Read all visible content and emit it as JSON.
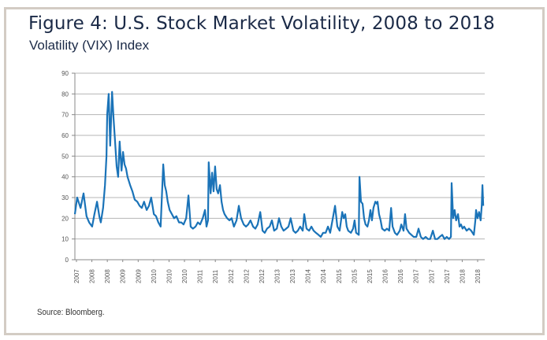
{
  "chart_data": {
    "type": "line",
    "title": "Figure 4:  U.S. Stock Market Volatility, 2008 to 2018",
    "subtitle": "Volatility (VIX) Index",
    "xlabel": "",
    "ylabel": "",
    "ylim": [
      0,
      90
    ],
    "xlim": [
      2008.04,
      2018.94
    ],
    "yticks": [
      "0",
      "10",
      "20",
      "30",
      "40",
      "50",
      "60",
      "70",
      "80",
      "90"
    ],
    "xtick_labels": [
      "2007",
      "2008",
      "2008",
      "2009",
      "2009",
      "2010",
      "2010",
      "2010",
      "2011",
      "2011",
      "2012",
      "2012",
      "2012",
      "2013",
      "2013",
      "2014",
      "2014",
      "2015",
      "2015",
      "2015",
      "2016",
      "2016",
      "2017",
      "2017",
      "2017",
      "2018",
      "2018"
    ],
    "grid": true,
    "legend": "none",
    "color": "#1a73b8",
    "series": [
      {
        "x": [
          2008.04,
          2008.1,
          2008.19,
          2008.27,
          2008.35,
          2008.42,
          2008.5,
          2008.56,
          2008.63,
          2008.69,
          2008.73,
          2008.79,
          2008.84,
          2008.88,
          2008.9,
          2008.94,
          2008.98,
          2009.03,
          2009.07,
          2009.11,
          2009.15,
          2009.19,
          2009.23,
          2009.28,
          2009.32,
          2009.36,
          2009.4,
          2009.44,
          2009.51,
          2009.57,
          2009.63,
          2009.7,
          2009.76,
          2009.82,
          2009.88,
          2009.95,
          2010.01,
          2010.07,
          2010.14,
          2010.2,
          2010.26,
          2010.32,
          2010.39,
          2010.43,
          2010.47,
          2010.51,
          2010.56,
          2010.62,
          2010.68,
          2010.74,
          2010.81,
          2010.87,
          2010.93,
          2011.0,
          2011.06,
          2011.12,
          2011.18,
          2011.25,
          2011.31,
          2011.37,
          2011.44,
          2011.5,
          2011.54,
          2011.58,
          2011.6,
          2011.65,
          2011.69,
          2011.73,
          2011.77,
          2011.81,
          2011.85,
          2011.9,
          2011.94,
          2011.98,
          2012.02,
          2012.09,
          2012.15,
          2012.21,
          2012.27,
          2012.34,
          2012.4,
          2012.46,
          2012.53,
          2012.59,
          2012.65,
          2012.71,
          2012.78,
          2012.84,
          2012.9,
          2012.97,
          2013.03,
          2013.09,
          2013.15,
          2013.22,
          2013.28,
          2013.34,
          2013.41,
          2013.47,
          2013.53,
          2013.59,
          2013.66,
          2013.72,
          2013.78,
          2013.85,
          2013.91,
          2013.97,
          2014.03,
          2014.1,
          2014.14,
          2014.2,
          2014.27,
          2014.33,
          2014.39,
          2014.45,
          2014.52,
          2014.58,
          2014.64,
          2014.71,
          2014.77,
          2014.83,
          2014.89,
          2014.96,
          2015.02,
          2015.08,
          2015.15,
          2015.19,
          2015.23,
          2015.27,
          2015.31,
          2015.38,
          2015.44,
          2015.48,
          2015.52,
          2015.59,
          2015.61,
          2015.65,
          2015.69,
          2015.73,
          2015.77,
          2015.82,
          2015.86,
          2015.9,
          2015.94,
          2015.98,
          2016.03,
          2016.07,
          2016.09,
          2016.13,
          2016.17,
          2016.21,
          2016.28,
          2016.34,
          2016.4,
          2016.45,
          2016.49,
          2016.55,
          2016.61,
          2016.68,
          2016.72,
          2016.78,
          2016.82,
          2016.86,
          2016.93,
          2016.99,
          2017.05,
          2017.12,
          2017.18,
          2017.24,
          2017.3,
          2017.37,
          2017.43,
          2017.49,
          2017.56,
          2017.62,
          2017.68,
          2017.74,
          2017.81,
          2017.87,
          2017.93,
          2017.99,
          2018.04,
          2018.06,
          2018.1,
          2018.14,
          2018.18,
          2018.23,
          2018.27,
          2018.31,
          2018.35,
          2018.39,
          2018.46,
          2018.52,
          2018.58,
          2018.65,
          2018.69,
          2018.71,
          2018.75,
          2018.79,
          2018.83,
          2018.86,
          2018.88,
          2018.9
        ],
        "y": [
          22,
          30,
          25,
          32,
          21,
          18,
          16,
          22,
          28,
          21,
          18,
          25,
          36,
          50,
          70,
          80,
          55,
          81,
          68,
          57,
          45,
          40,
          57,
          43,
          52,
          46,
          44,
          40,
          36,
          33,
          29,
          28,
          26,
          25,
          28,
          24,
          26,
          30,
          22,
          21,
          18,
          16,
          46,
          36,
          33,
          28,
          24,
          22,
          20,
          21,
          18,
          18,
          17,
          20,
          31,
          16,
          15,
          16,
          18,
          17,
          20,
          24,
          16,
          19,
          47,
          32,
          42,
          33,
          45,
          34,
          32,
          36,
          28,
          24,
          22,
          20,
          19,
          20,
          16,
          19,
          26,
          20,
          17,
          16,
          17,
          19,
          16,
          15,
          17,
          23,
          14,
          13,
          15,
          16,
          19,
          14,
          15,
          20,
          16,
          14,
          15,
          16,
          20,
          14,
          13,
          14,
          16,
          14,
          22,
          15,
          14,
          16,
          14,
          13,
          12,
          11,
          13,
          13,
          16,
          13,
          19,
          26,
          16,
          14,
          23,
          20,
          22,
          16,
          14,
          13,
          15,
          19,
          13,
          12,
          40,
          28,
          27,
          20,
          17,
          16,
          19,
          24,
          19,
          25,
          28,
          27,
          28,
          22,
          19,
          15,
          14,
          15,
          14,
          25,
          16,
          13,
          12,
          14,
          17,
          14,
          22,
          15,
          13,
          12,
          11,
          11,
          15,
          11,
          10,
          11,
          10,
          10,
          14,
          10,
          10,
          11,
          12,
          10,
          11,
          10,
          11,
          37,
          20,
          24,
          19,
          22,
          16,
          17,
          15,
          16,
          14,
          15,
          14,
          12,
          19,
          24,
          20,
          23,
          19,
          26,
          36,
          26
        ]
      }
    ]
  },
  "source": "Source: Bloomberg."
}
